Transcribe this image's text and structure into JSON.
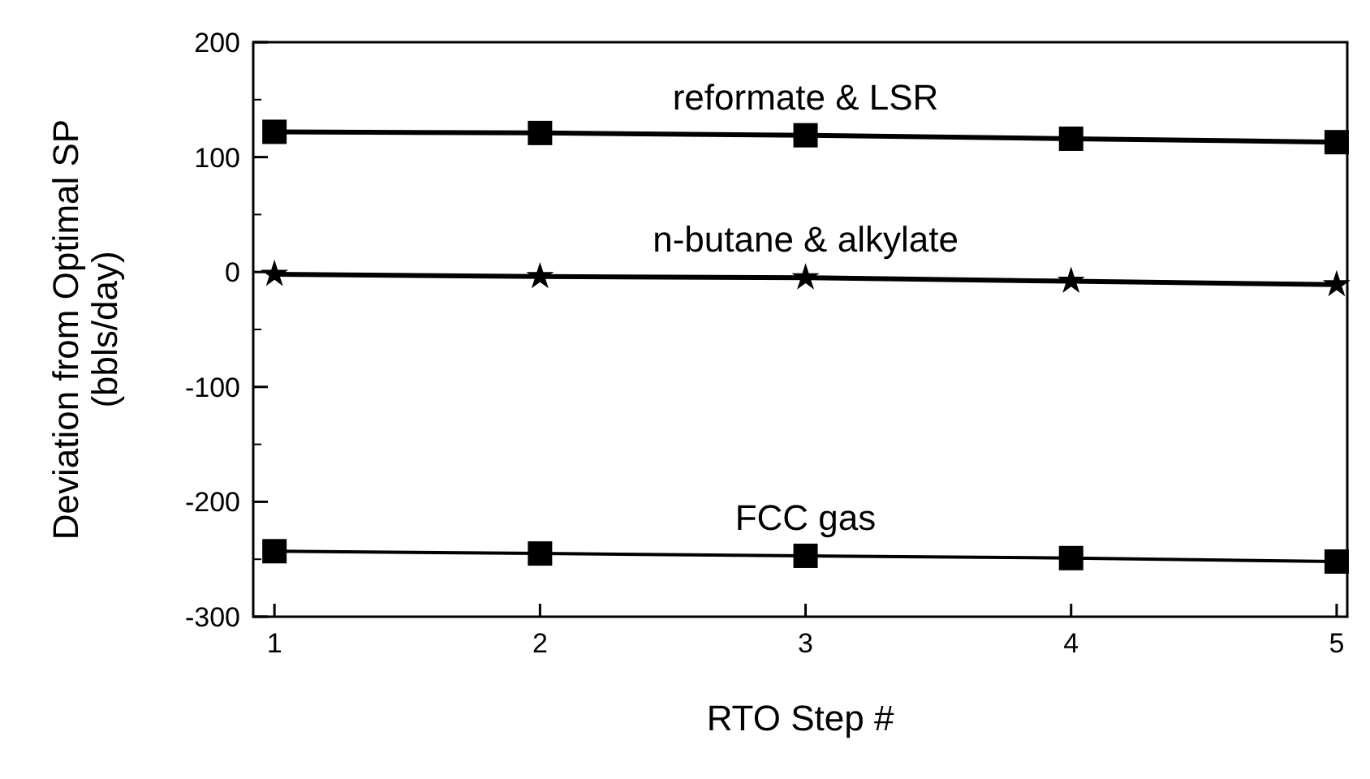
{
  "chart_data": {
    "type": "line",
    "xlabel": "RTO Step #",
    "ylabel": "Deviation from Optimal SP\n(bbls/day)",
    "x": [
      1,
      2,
      3,
      4,
      5
    ],
    "xlim": [
      0.92,
      5.04
    ],
    "xticks": [
      1,
      2,
      3,
      4,
      5
    ],
    "ylim": [
      -300,
      200
    ],
    "yticks": [
      -300,
      -200,
      -100,
      0,
      100,
      200
    ],
    "grid": false,
    "legend": false,
    "series": [
      {
        "name": "reformate & LSR",
        "color": "#000000",
        "marker": "square",
        "values": [
          122,
          121,
          119,
          116,
          113
        ]
      },
      {
        "name": "n-butane & alkylate",
        "color": "#000000",
        "marker": "star",
        "values": [
          -2,
          -4,
          -5,
          -8,
          -11
        ]
      },
      {
        "name": "FCC gas",
        "color": "#000000",
        "marker": "square",
        "values": [
          -243,
          -245,
          -247,
          -249,
          -252
        ]
      }
    ]
  }
}
